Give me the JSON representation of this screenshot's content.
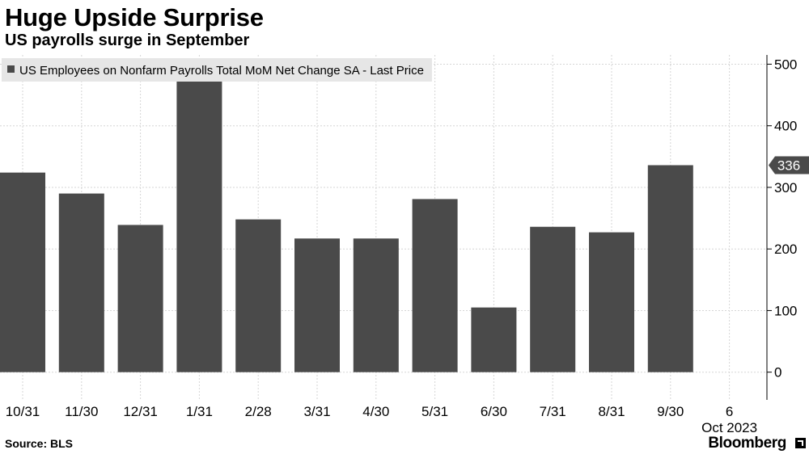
{
  "header": {
    "title": "Huge Upside Surprise",
    "subtitle": "US payrolls surge in September"
  },
  "footer": {
    "source": "Source: BLS",
    "brand": "Bloomberg"
  },
  "colors": {
    "bar": "#4a4a4a",
    "grid": "#d6d6d6",
    "axis": "#000000",
    "legend_bg": "#e6e6e6"
  },
  "chart_data": {
    "type": "bar",
    "legend": "US Employees on Nonfarm Payrolls Total MoM Net Change SA - Last Price",
    "legend_placement": "top-left",
    "categories": [
      "10/31",
      "11/30",
      "12/31",
      "1/31",
      "2/28",
      "3/31",
      "4/30",
      "5/31",
      "6/30",
      "7/31",
      "8/31",
      "9/30",
      "6"
    ],
    "period_label": "Oct 2023",
    "values": [
      324,
      290,
      239,
      472,
      248,
      217,
      217,
      281,
      105,
      236,
      227,
      336,
      null
    ],
    "last_value_label": "336",
    "ylim": [
      -45,
      515
    ],
    "yticks": [
      0,
      100,
      200,
      300,
      400,
      500
    ],
    "y_axis_side": "right",
    "grid": true
  }
}
